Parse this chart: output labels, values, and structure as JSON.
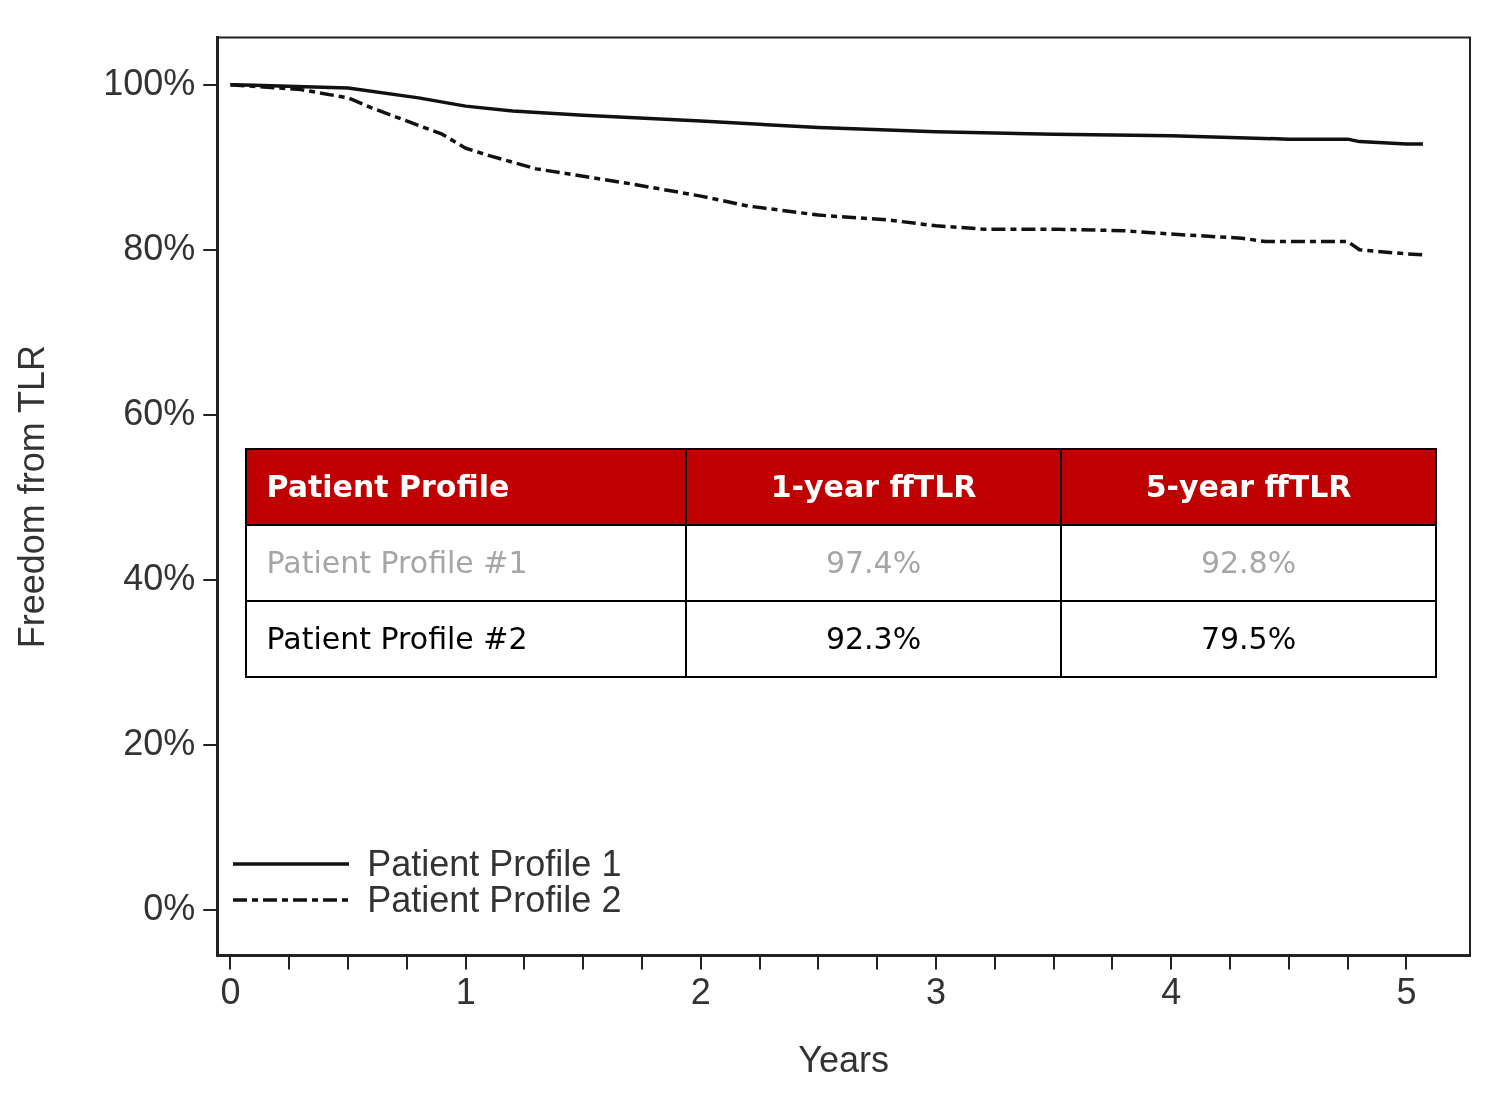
{
  "chart_data": {
    "type": "line",
    "xlabel": "Years",
    "ylabel": "Freedom from TLR",
    "xlim": [
      -0.056,
      5.27
    ],
    "ylim": [
      -5.5,
      105.7
    ],
    "xticks": [
      0,
      {
        "value": 0.25,
        "label": null
      },
      {
        "value": 0.5,
        "label": null
      },
      {
        "value": 0.75,
        "label": null
      },
      1,
      {
        "value": 1.25,
        "label": null
      },
      {
        "value": 1.5,
        "label": null
      },
      {
        "value": 1.75,
        "label": null
      },
      2,
      {
        "value": 2.25,
        "label": null
      },
      {
        "value": 2.5,
        "label": null
      },
      {
        "value": 2.75,
        "label": null
      },
      3,
      {
        "value": 3.25,
        "label": null
      },
      {
        "value": 3.5,
        "label": null
      },
      {
        "value": 3.75,
        "label": null
      },
      4,
      {
        "value": 4.25,
        "label": null
      },
      {
        "value": 4.5,
        "label": null
      },
      {
        "value": 4.75,
        "label": null
      },
      5
    ],
    "yticks": [
      {
        "value": 0,
        "label": "0%"
      },
      {
        "value": 20,
        "label": "20%"
      },
      {
        "value": 40,
        "label": "40%"
      },
      {
        "value": 60,
        "label": "60%"
      },
      {
        "value": 80,
        "label": "80%"
      },
      {
        "value": 100,
        "label": "100%"
      }
    ],
    "legend": "bottom left",
    "grid": false,
    "marker": "none",
    "series": [
      {
        "name": "Patient Profile 1",
        "color": "#111111",
        "line_style": "solid",
        "x": [
          0,
          0.5,
          0.8,
          1.0,
          1.2,
          1.5,
          2.0,
          2.5,
          3.0,
          3.5,
          4.0,
          4.5,
          4.75,
          4.8,
          5.0,
          5.07
        ],
        "values": [
          100,
          99.6,
          98.4,
          97.4,
          96.8,
          96.3,
          95.6,
          94.8,
          94.3,
          94.0,
          93.8,
          93.4,
          93.4,
          93.1,
          92.8,
          92.8
        ]
      },
      {
        "name": "Patient Profile 2",
        "color": "#111111",
        "line_style": "dashed",
        "x": [
          0,
          0.3,
          0.5,
          0.6,
          0.9,
          1.0,
          1.1,
          1.3,
          1.5,
          1.7,
          2.0,
          2.2,
          2.5,
          2.8,
          3.0,
          3.2,
          3.5,
          3.8,
          4.0,
          4.3,
          4.4,
          4.75,
          4.8,
          5.0,
          5.07
        ],
        "values": [
          100,
          99.4,
          98.4,
          97.2,
          94.0,
          92.3,
          91.4,
          89.8,
          88.9,
          88.0,
          86.5,
          85.3,
          84.2,
          83.6,
          82.9,
          82.5,
          82.5,
          82.3,
          81.9,
          81.4,
          81.0,
          81.0,
          80.0,
          79.5,
          79.4
        ]
      }
    ],
    "annotations": [
      "Patient Profile",
      "1-year ffTLR",
      "5-year ffTLR",
      "Patient Profile #1",
      "97.4%",
      "92.8%",
      "Patient Profile #2",
      "92.3%",
      "79.5%"
    ]
  }
}
